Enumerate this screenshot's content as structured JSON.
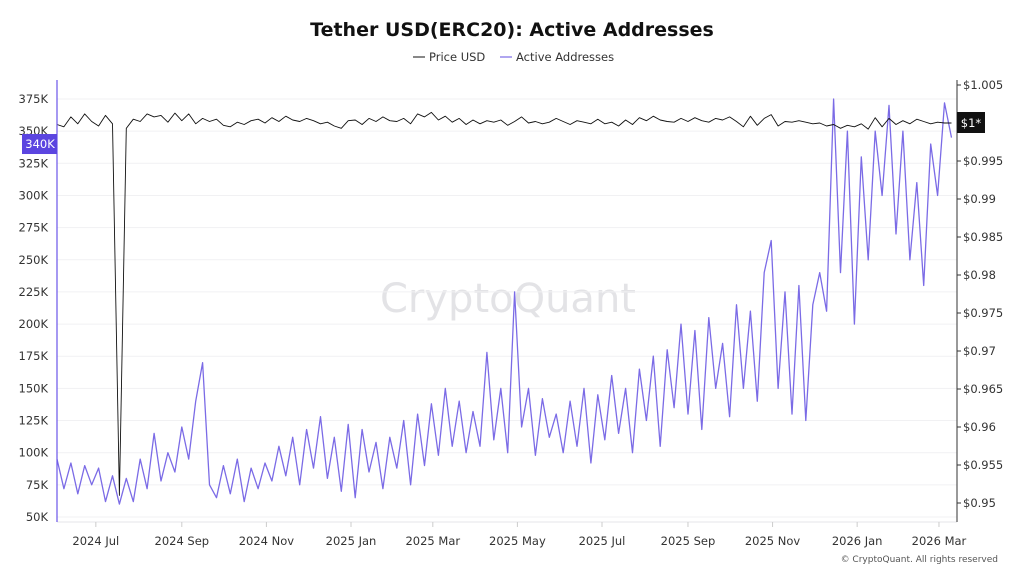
{
  "chart_data": {
    "type": "line",
    "title": "Tether USD(ERC20): Active Addresses",
    "watermark": "CryptoQuant",
    "footer": "© CryptoQuant. All rights reserved",
    "legend_placement": "top-center",
    "grid": true,
    "x_range": [
      "2024-06-03",
      "2026-03-14"
    ],
    "x_ticks": [
      {
        "date": "2024-07-01",
        "label": "2024 Jul"
      },
      {
        "date": "2024-09-01",
        "label": "2024 Sep"
      },
      {
        "date": "2024-11-01",
        "label": "2024 Nov"
      },
      {
        "date": "2025-01-01",
        "label": "2025 Jan"
      },
      {
        "date": "2025-03-01",
        "label": "2025 Mar"
      },
      {
        "date": "2025-05-01",
        "label": "2025 May"
      },
      {
        "date": "2025-07-01",
        "label": "2025 Jul"
      },
      {
        "date": "2025-09-01",
        "label": "2025 Sep"
      },
      {
        "date": "2025-11-01",
        "label": "2025 Nov"
      },
      {
        "date": "2026-01-01",
        "label": "2026 Jan"
      },
      {
        "date": "2026-03-01",
        "label": "2026 Mar"
      }
    ],
    "y_left": {
      "range": [
        50000,
        375000
      ],
      "ticks": [
        50000,
        75000,
        100000,
        125000,
        150000,
        175000,
        200000,
        225000,
        250000,
        275000,
        300000,
        325000,
        350000,
        375000
      ],
      "tick_labels": [
        "50K",
        "75K",
        "100K",
        "125K",
        "150K",
        "175K",
        "200K",
        "225K",
        "250K",
        "275K",
        "300K",
        "325K",
        "350K",
        "375K"
      ],
      "current_value": 340000,
      "current_label": "340K",
      "color": "#5b45e0"
    },
    "y_right": {
      "range": [
        0.95,
        1.005
      ],
      "ticks": [
        0.95,
        0.955,
        0.96,
        0.965,
        0.97,
        0.975,
        0.98,
        0.985,
        0.99,
        0.995,
        1.005
      ],
      "tick_labels": [
        "$0.95",
        "$0.955",
        "$0.96",
        "$0.965",
        "$0.97",
        "$0.975",
        "$0.98",
        "$0.985",
        "$0.99",
        "$0.995",
        "$1.005"
      ],
      "current_value": 1.0,
      "current_label": "$1*",
      "color": "#111111"
    },
    "x": [
      "2024-06-03",
      "2024-06-08",
      "2024-06-13",
      "2024-06-18",
      "2024-06-23",
      "2024-06-28",
      "2024-07-03",
      "2024-07-08",
      "2024-07-13",
      "2024-07-18",
      "2024-07-23",
      "2024-07-28",
      "2024-08-02",
      "2024-08-07",
      "2024-08-12",
      "2024-08-17",
      "2024-08-22",
      "2024-08-27",
      "2024-09-01",
      "2024-09-06",
      "2024-09-11",
      "2024-09-16",
      "2024-09-21",
      "2024-09-26",
      "2024-10-01",
      "2024-10-06",
      "2024-10-11",
      "2024-10-16",
      "2024-10-21",
      "2024-10-26",
      "2024-10-31",
      "2024-11-05",
      "2024-11-10",
      "2024-11-15",
      "2024-11-20",
      "2024-11-25",
      "2024-11-30",
      "2024-12-05",
      "2024-12-10",
      "2024-12-15",
      "2024-12-20",
      "2024-12-25",
      "2024-12-30",
      "2025-01-04",
      "2025-01-09",
      "2025-01-14",
      "2025-01-19",
      "2025-01-24",
      "2025-01-29",
      "2025-02-03",
      "2025-02-08",
      "2025-02-13",
      "2025-02-18",
      "2025-02-23",
      "2025-02-28",
      "2025-03-05",
      "2025-03-10",
      "2025-03-15",
      "2025-03-20",
      "2025-03-25",
      "2025-03-30",
      "2025-04-04",
      "2025-04-09",
      "2025-04-14",
      "2025-04-19",
      "2025-04-24",
      "2025-04-29",
      "2025-05-04",
      "2025-05-09",
      "2025-05-14",
      "2025-05-19",
      "2025-05-24",
      "2025-05-29",
      "2025-06-03",
      "2025-06-08",
      "2025-06-13",
      "2025-06-18",
      "2025-06-23",
      "2025-06-28",
      "2025-07-03",
      "2025-07-08",
      "2025-07-13",
      "2025-07-18",
      "2025-07-23",
      "2025-07-28",
      "2025-08-02",
      "2025-08-07",
      "2025-08-12",
      "2025-08-17",
      "2025-08-22",
      "2025-08-27",
      "2025-09-01",
      "2025-09-06",
      "2025-09-11",
      "2025-09-16",
      "2025-09-21",
      "2025-09-26",
      "2025-10-01",
      "2025-10-06",
      "2025-10-11",
      "2025-10-16",
      "2025-10-21",
      "2025-10-26",
      "2025-10-31",
      "2025-11-05",
      "2025-11-10",
      "2025-11-15",
      "2025-11-20",
      "2025-11-25",
      "2025-11-30",
      "2025-12-05",
      "2025-12-10",
      "2025-12-15",
      "2025-12-20",
      "2025-12-25",
      "2025-12-30",
      "2026-01-04",
      "2026-01-09",
      "2026-01-14",
      "2026-01-19",
      "2026-01-24",
      "2026-01-29",
      "2026-02-03",
      "2026-02-08",
      "2026-02-13",
      "2026-02-18",
      "2026-02-23",
      "2026-02-28",
      "2026-03-05",
      "2026-03-10"
    ],
    "series": [
      {
        "name": "Price USD",
        "axis": "right",
        "color": "#111111",
        "values": [
          0.9998,
          0.9995,
          1.0008,
          0.9999,
          1.0012,
          1.0002,
          0.9996,
          1.001,
          0.9999,
          0.951,
          0.9993,
          1.0005,
          1.0002,
          1.0012,
          1.0008,
          1.001,
          1.0001,
          1.0013,
          1.0003,
          1.0012,
          0.9999,
          1.0006,
          1.0002,
          1.0005,
          0.9997,
          0.9995,
          1.0001,
          0.9998,
          1.0003,
          1.0005,
          1.0,
          1.0007,
          1.0002,
          1.0009,
          1.0004,
          1.0002,
          1.0006,
          1.0003,
          0.9999,
          1.0001,
          0.9996,
          0.9993,
          1.0003,
          1.0004,
          0.9998,
          1.0006,
          1.0002,
          1.0008,
          1.0003,
          1.0002,
          1.0006,
          0.9999,
          1.0012,
          1.0008,
          1.0014,
          1.0004,
          1.0009,
          1.0001,
          1.0006,
          0.9998,
          1.0004,
          0.9999,
          1.0003,
          1.0001,
          1.0004,
          0.9997,
          1.0002,
          1.0008,
          1.0,
          1.0002,
          0.9999,
          1.0001,
          1.0006,
          1.0002,
          0.9998,
          1.0003,
          1.0001,
          0.9999,
          1.0005,
          0.9999,
          1.0001,
          0.9996,
          1.0004,
          0.9998,
          1.0007,
          1.0003,
          1.0009,
          1.0004,
          1.0002,
          1.0001,
          1.0006,
          1.0002,
          1.0007,
          1.0003,
          1.0001,
          1.0006,
          1.0004,
          1.0008,
          1.0002,
          0.9995,
          1.0009,
          0.9997,
          1.0006,
          1.0011,
          0.9996,
          1.0002,
          1.0001,
          1.0003,
          1.0001,
          0.9999,
          1.0,
          0.9996,
          0.9998,
          0.9993,
          0.9997,
          0.9995,
          0.9999,
          0.9992,
          1.0007,
          0.9995,
          1.0006,
          0.9998,
          1.0003,
          0.9999,
          1.0005,
          1.0002,
          0.9999,
          1.0001,
          1.0,
          1.0
        ]
      },
      {
        "name": "Active Addresses",
        "axis": "left",
        "color": "#7b6be6",
        "values": [
          95000,
          72000,
          92000,
          68000,
          90000,
          75000,
          88000,
          62000,
          82000,
          60000,
          80000,
          62000,
          95000,
          72000,
          115000,
          78000,
          100000,
          85000,
          120000,
          95000,
          140000,
          170000,
          75000,
          65000,
          90000,
          68000,
          95000,
          62000,
          88000,
          72000,
          92000,
          78000,
          105000,
          82000,
          112000,
          75000,
          118000,
          88000,
          128000,
          80000,
          112000,
          70000,
          122000,
          65000,
          118000,
          85000,
          108000,
          72000,
          112000,
          88000,
          125000,
          75000,
          130000,
          90000,
          138000,
          98000,
          150000,
          105000,
          140000,
          100000,
          132000,
          105000,
          178000,
          110000,
          150000,
          100000,
          225000,
          120000,
          150000,
          98000,
          142000,
          112000,
          130000,
          100000,
          140000,
          105000,
          150000,
          92000,
          145000,
          110000,
          160000,
          115000,
          150000,
          100000,
          165000,
          125000,
          175000,
          105000,
          180000,
          135000,
          200000,
          130000,
          195000,
          118000,
          205000,
          150000,
          185000,
          128000,
          215000,
          150000,
          210000,
          140000,
          240000,
          265000,
          150000,
          225000,
          130000,
          230000,
          125000,
          215000,
          240000,
          210000,
          375000,
          240000,
          350000,
          200000,
          330000,
          250000,
          350000,
          300000,
          370000,
          270000,
          350000,
          250000,
          310000,
          230000,
          340000,
          300000,
          372000,
          345000
        ]
      }
    ]
  }
}
